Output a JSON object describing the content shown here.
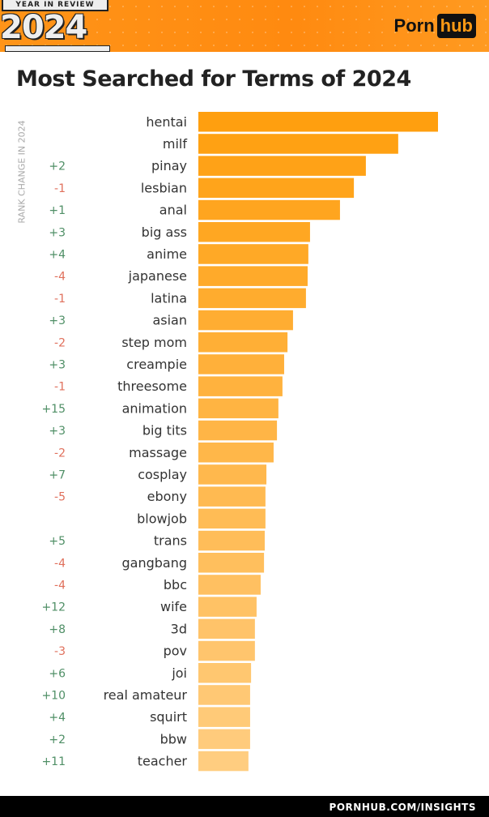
{
  "header": {
    "badge_top": "YEAR IN REVIEW",
    "badge_year": "2024",
    "logo_left": "Porn",
    "logo_right": "hub"
  },
  "footer": {
    "url": "PORNHUB.COM/INSIGHTS"
  },
  "colors": {
    "bar_top": "#ff9f0f",
    "bar_bottom": "#ffcd80",
    "positive": "#4f8f66",
    "negative": "#e0705c",
    "header": "#ff9418"
  },
  "chart_data": {
    "type": "bar",
    "orientation": "horizontal",
    "title": "Most Searched for Terms of 2024",
    "ylabel": "RANK CHANGE IN 2024",
    "value_note": "relative bar length, top term = 100 (no axis printed)",
    "categories": [
      "hentai",
      "milf",
      "pinay",
      "lesbian",
      "anal",
      "big ass",
      "anime",
      "japanese",
      "latina",
      "asian",
      "step mom",
      "creampie",
      "threesome",
      "animation",
      "big tits",
      "massage",
      "cosplay",
      "ebony",
      "blowjob",
      "trans",
      "gangbang",
      "bbc",
      "wife",
      "3d",
      "pov",
      "joi",
      "real amateur",
      "squirt",
      "bbw",
      "teacher"
    ],
    "values": [
      100,
      83.4,
      69.9,
      64.9,
      59.1,
      46.6,
      45.9,
      45.6,
      44.9,
      39.5,
      37.2,
      35.8,
      35.1,
      33.4,
      32.8,
      31.4,
      28.4,
      28.0,
      28.0,
      27.7,
      27.4,
      26.0,
      24.3,
      23.6,
      23.6,
      22.0,
      21.6,
      21.6,
      21.6,
      20.9
    ],
    "rank_change": [
      "",
      "",
      "+2",
      "-1",
      "+1",
      "+3",
      "+4",
      "-4",
      "-1",
      "+3",
      "-2",
      "+3",
      "-1",
      "+15",
      "+3",
      "-2",
      "+7",
      "-5",
      "",
      "+5",
      "-4",
      "-4",
      "+12",
      "+8",
      "-3",
      "+6",
      "+10",
      "+4",
      "+2",
      "+11"
    ],
    "grid": false,
    "legend": "none"
  }
}
